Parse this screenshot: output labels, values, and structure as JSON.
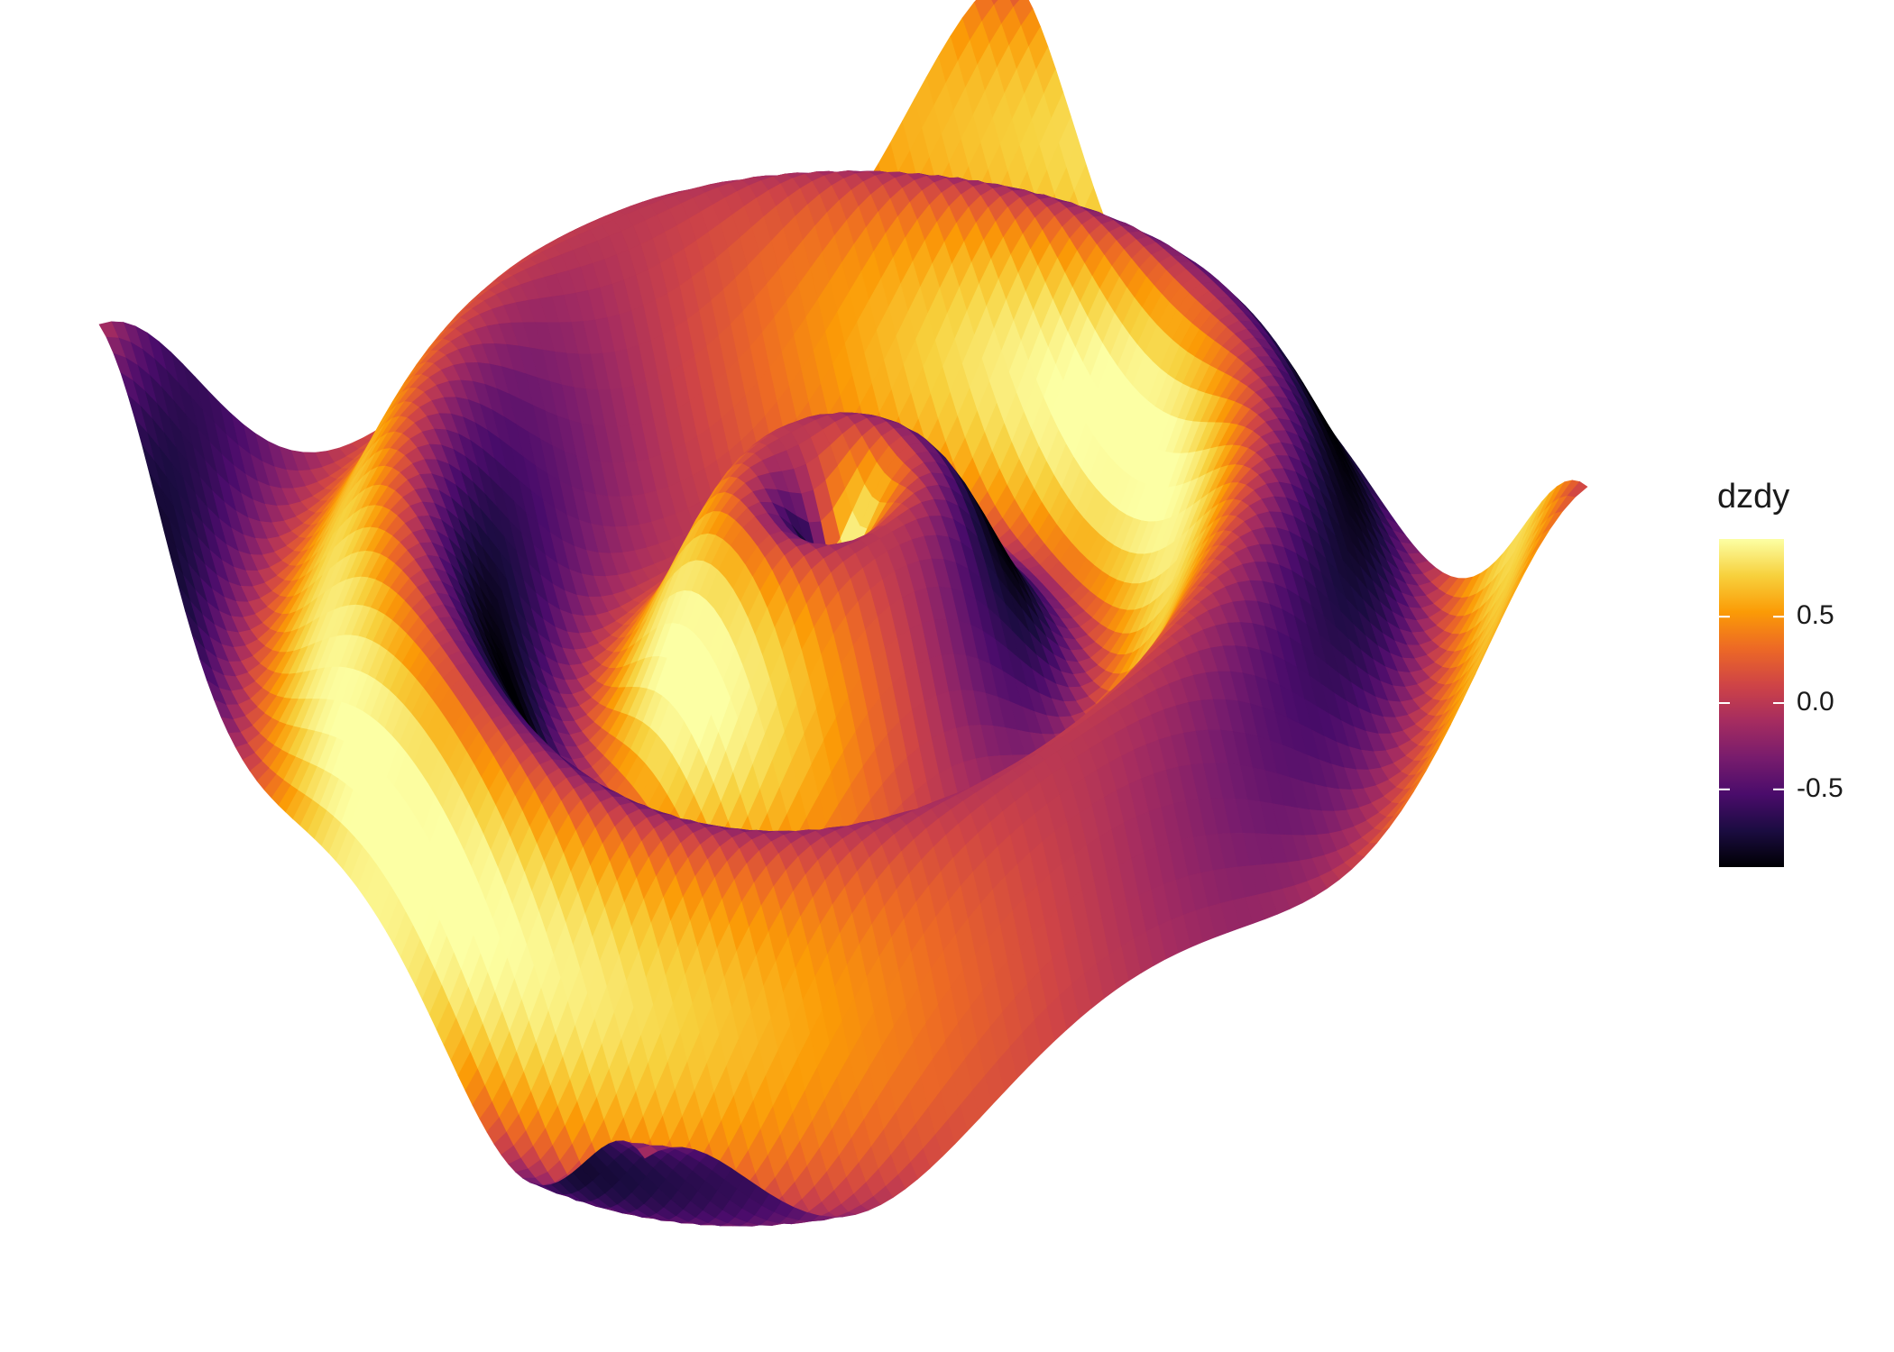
{
  "chart_data": {
    "type": "surface-3d",
    "function": "z = sin(r) with r = sqrt(x^2 + y^2) (radial ripple)",
    "x_range": [
      -10,
      10
    ],
    "y_range": [
      -10,
      10
    ],
    "grid_resolution": 76,
    "fill_variable": "dzdy",
    "fill_range": [
      -0.95,
      0.95
    ],
    "colormap": "inferno",
    "colormap_stops": [
      "#000004",
      "#1b0c41",
      "#4a0c6b",
      "#781c6d",
      "#a52c60",
      "#cf4446",
      "#ed6925",
      "#fb9b06",
      "#f7d13d",
      "#fcffa4"
    ],
    "legend": {
      "title": "dzdy",
      "position": "right",
      "ticks": [
        {
          "value": 0.5,
          "label": "0.5"
        },
        {
          "value": 0.0,
          "label": "0.0"
        },
        {
          "value": -0.5,
          "label": "-0.5"
        }
      ]
    },
    "axes_visible": false,
    "grid": false
  }
}
